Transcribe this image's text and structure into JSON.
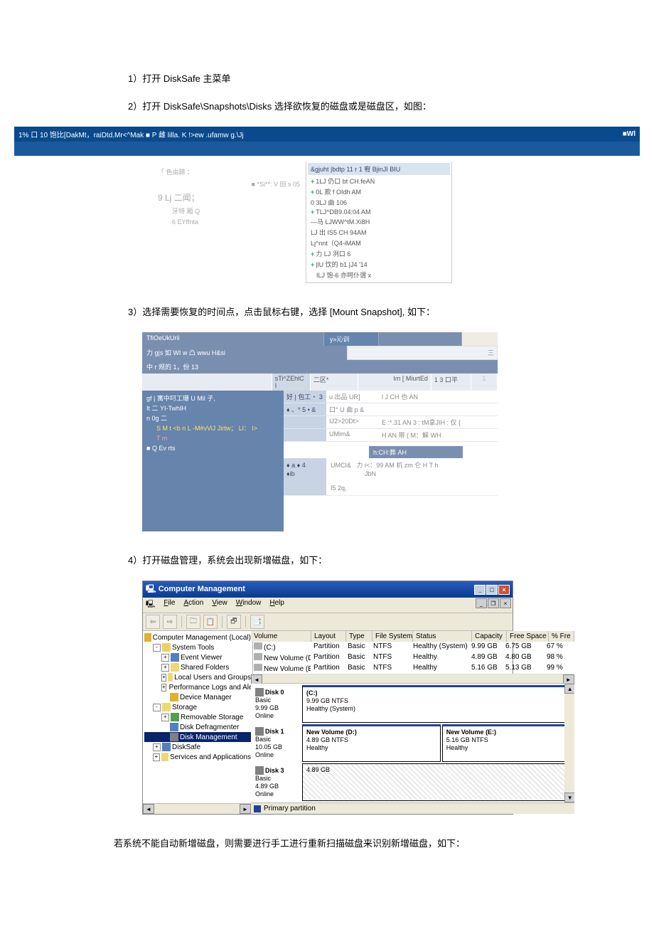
{
  "steps": {
    "s1": "1）打开 DiskSafe 主菜单",
    "s2": "2）打开 DiskSafe\\Snapshots\\Disks 选择欲恢复的磁盘或是磁盘区，如图：",
    "s3": "3）选择需要恢复的时间点，点击鼠标右键，选择 [Mount Snapshot], 如下：",
    "s4": "4）打开磁盘管理，系统会出现新增磁盘，如下：",
    "note": "若系统不能自动新增磁盘，则需要进行手工进行重新扫描磁盘来识别新增磁盘，如下："
  },
  "fig1": {
    "titleLeft": "1% 口 10 饱比[DakMt，raiDtd.Mr<^Mak ■ P 雌 lilla. K !>ew .ufamw g.\\Jj",
    "titleRight": "■Wl",
    "left": {
      "r1": "「 色由蹄 ：",
      "r1b": "■ *Si**: V 田 s 05",
      "r2": "9 Lj 二闻；",
      "r3": "牙特 厢 Q",
      "r4": "6 EYffnta"
    },
    "rightHead": "&gjuht |bdtp 11 r 1 宥 BjinJI BIU",
    "rightLines": [
      "1LJ 仍口 bt CH.feAN",
      "0L 欺 f OIdh AM",
      "0 3LJ 曲 106",
      "TLJ^DB9.04:04 AM",
      "—马 LJWW^tM.Xi8H",
      "LJ 出 IS5 CH 94AM",
      "Lj^nnt（Q4-iMAM",
      "力 LJ 冽口 6",
      "|lU 饮的 b1 |J4 '14",
      "ILJ 饱-6 亦呵仆谓 x"
    ]
  },
  "fig2": {
    "cellTitle": "TfiOeUkUril",
    "tab1": "y»沁训",
    "r2left": "力 g|s 如 WI w 凸 wwu H&si",
    "r3": "中 r 规的 1，份 13",
    "h1": "",
    "h2": "sTi^ZEhlC I",
    "h3": "二区*",
    "h4": "Im [ MiurtEd",
    "h5": "1 3 口平",
    "h6": "1",
    "tree": {
      "l1": "gf | 寓中叼工珊 U Mil 子,",
      "l2": "It 二 YI-TwhIH",
      "l3": "n 0g 二",
      "l4": "S M t <b n L -M#vViJ Jirtw； Ll： I>",
      "l5": "T m",
      "l6": "Q Ev rts"
    },
    "tbl": {
      "r1c1": "好 | 包工・ 3",
      "r1c2": "u 出品 UR]",
      "r1c3": "l J CH 也 AN",
      "r2c1": "♦ 、* 5 • &",
      "r2c2": "口° U 曲 p &",
      "r2c3": "",
      "r3c1": "",
      "r3c2": "IJ2>20Dt>",
      "r3c3": "E :*.31 AN 3 : tM拿JIH : 仅 {",
      "r4c1": "",
      "r4c2": "UMim&",
      "r4c3": "H AN 带 ( M：解 WH"
    },
    "subhead": "h:CH:葬 AH",
    "b": {
      "c1a": "♦ a ♦ 4",
      "c1b": "♦ib",
      "c2a": "UMCI&",
      "c2b": "力 i<：99 AM 机 zm 仑 H T h",
      "c2c": "JbN",
      "c2d": "I5 2q,"
    }
  },
  "fig3": {
    "title": "Computer Management",
    "menu": {
      "file": "File",
      "action": "Action",
      "view": "View",
      "window": "Window",
      "help": "Help"
    },
    "tree": {
      "root": "Computer Management (Local)",
      "systools": "System Tools",
      "event": "Event Viewer",
      "shared": "Shared Folders",
      "users": "Local Users and Groups",
      "perf": "Performance Logs and Alerts",
      "devmgr": "Device Manager",
      "storage": "Storage",
      "remstor": "Removable Storage",
      "defrag": "Disk Defragmenter",
      "diskmgmt": "Disk Management",
      "disksafe": "DiskSafe",
      "services": "Services and Applications"
    },
    "volhead": {
      "vol": "Volume",
      "lay": "Layout",
      "typ": "Type",
      "fs": "File System",
      "st": "Status",
      "cap": "Capacity",
      "fr": "Free Space",
      "pf": "% Fre"
    },
    "vols": [
      {
        "v": "(C:)",
        "l": "Partition",
        "t": "Basic",
        "f": "NTFS",
        "s": "Healthy (System)",
        "c": "9.99 GB",
        "fr": "6.75 GB",
        "p": "67 %"
      },
      {
        "v": "New Volume (D:)",
        "l": "Partition",
        "t": "Basic",
        "f": "NTFS",
        "s": "Healthy",
        "c": "4.89 GB",
        "fr": "4.80 GB",
        "p": "98 %"
      },
      {
        "v": "New Volume (E:)",
        "l": "Partition",
        "t": "Basic",
        "f": "NTFS",
        "s": "Healthy",
        "c": "5.16 GB",
        "fr": "5.13 GB",
        "p": "99 %"
      }
    ],
    "disks": {
      "d0": {
        "name": "Disk 0",
        "type": "Basic",
        "size": "9.99 GB",
        "state": "Online",
        "bar": "(C:)",
        "bar2": "9.99 GB NTFS",
        "bar3": "Healthy (System)"
      },
      "d1": {
        "name": "Disk 1",
        "type": "Basic",
        "size": "10.05 GB",
        "state": "Online",
        "b1a": "New Volume (D:)",
        "b1b": "4.89 GB NTFS",
        "b1c": "Healthy",
        "b2a": "New Volume (E:)",
        "b2b": "5.16 GB NTFS",
        "b2c": "Healthy"
      },
      "d3": {
        "name": "Disk 3",
        "type": "Basic",
        "size": "4.89 GB",
        "state": "Online",
        "bar": "4.89 GB"
      }
    },
    "legend": "Primary partition"
  }
}
